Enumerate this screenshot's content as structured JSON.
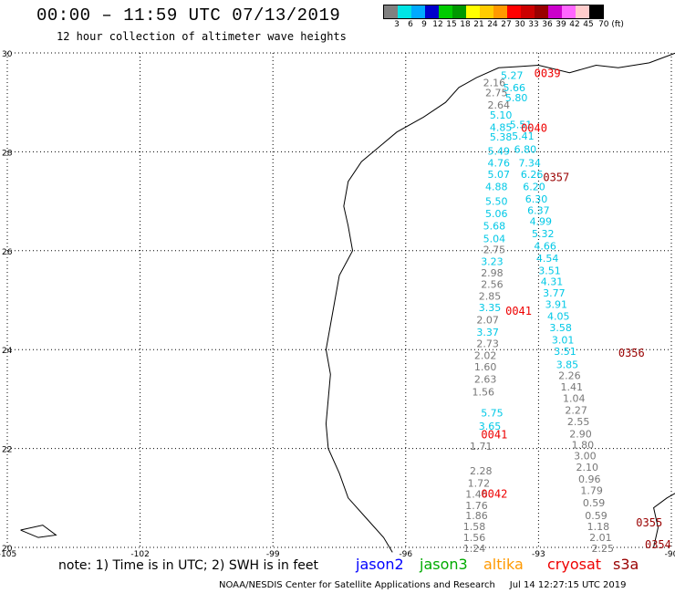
{
  "title": "00:00 – 11:59 UTC 07/13/2019",
  "subtitle": "12 hour collection of altimeter wave heights",
  "colorbar": {
    "colors": [
      "#808080",
      "#00e5e5",
      "#00aaff",
      "#0000cc",
      "#00cc00",
      "#009900",
      "#ffff00",
      "#ffcc00",
      "#ff9900",
      "#ff0000",
      "#cc0000",
      "#990000",
      "#cc00cc",
      "#ff66ff",
      "#ffcccc",
      "#000000"
    ],
    "labels": [
      "3",
      "6",
      "9",
      "12",
      "15",
      "18",
      "21",
      "24",
      "27",
      "30",
      "33",
      "36",
      "39",
      "42",
      "45",
      "70 (ft)"
    ]
  },
  "axes": {
    "lat_labels": [
      "30",
      "28",
      "26",
      "24",
      "22",
      "20"
    ],
    "lon_labels": [
      "-105",
      "-102",
      "-99",
      "-96",
      "-93",
      "-90"
    ]
  },
  "note": "note: 1) Time is in UTC; 2) SWH is in feet",
  "legend": [
    {
      "name": "jason2",
      "color": "#0000ff"
    },
    {
      "name": "jason3",
      "color": "#00aa00"
    },
    {
      "name": "altika",
      "color": "#ff9900"
    },
    {
      "name": "cryosat",
      "color": "#ee0000"
    },
    {
      "name": "s3a",
      "color": "#990000"
    }
  ],
  "credit": "NOAA/NESDIS Center for Satellite Applications and Research     Jul 14 12:27:15 UTC 2019",
  "colors": {
    "gray": "#777777",
    "cyan": "#00c8e6",
    "red": "#ee0000",
    "darkred": "#990000"
  },
  "time_labels": [
    {
      "text": "0039",
      "lon": -92.8,
      "lat": 29.6,
      "color": "red"
    },
    {
      "text": "0040",
      "lon": -93.1,
      "lat": 28.5,
      "color": "red"
    },
    {
      "text": "0357",
      "lon": -92.6,
      "lat": 27.5,
      "color": "darkred"
    },
    {
      "text": "0041",
      "lon": -93.45,
      "lat": 24.8,
      "color": "red"
    },
    {
      "text": "0356",
      "lon": -90.9,
      "lat": 23.95,
      "color": "darkred"
    },
    {
      "text": "0041",
      "lon": -94.0,
      "lat": 22.3,
      "color": "red"
    },
    {
      "text": "0042",
      "lon": -94.0,
      "lat": 21.1,
      "color": "red"
    },
    {
      "text": "0355",
      "lon": -90.5,
      "lat": 20.52,
      "color": "darkred"
    },
    {
      "text": "0354",
      "lon": -90.3,
      "lat": 20.07,
      "color": "darkred"
    }
  ],
  "wave_tracks": [
    {
      "name": "track-west",
      "points": [
        {
          "v": "2.16",
          "lon": -94.0,
          "lat": 29.4,
          "c": "gray"
        },
        {
          "v": "2.75",
          "lon": -93.95,
          "lat": 29.2,
          "c": "gray"
        },
        {
          "v": "2.64",
          "lon": -93.9,
          "lat": 28.95,
          "c": "gray"
        },
        {
          "v": "5.10",
          "lon": -93.85,
          "lat": 28.75,
          "c": "cyan"
        },
        {
          "v": "4.85",
          "lon": -93.85,
          "lat": 28.5,
          "c": "cyan"
        },
        {
          "v": "5.38",
          "lon": -93.85,
          "lat": 28.3,
          "c": "cyan"
        },
        {
          "v": "5.49",
          "lon": -93.9,
          "lat": 28.02,
          "c": "cyan"
        },
        {
          "v": "4.76",
          "lon": -93.9,
          "lat": 27.78,
          "c": "cyan"
        },
        {
          "v": "5.07",
          "lon": -93.9,
          "lat": 27.55,
          "c": "cyan"
        },
        {
          "v": "4.88",
          "lon": -93.95,
          "lat": 27.3,
          "c": "cyan"
        },
        {
          "v": "5.50",
          "lon": -93.95,
          "lat": 27.0,
          "c": "cyan"
        },
        {
          "v": "5.06",
          "lon": -93.95,
          "lat": 26.75,
          "c": "cyan"
        },
        {
          "v": "5.68",
          "lon": -94.0,
          "lat": 26.5,
          "c": "cyan"
        },
        {
          "v": "5.04",
          "lon": -94.0,
          "lat": 26.25,
          "c": "cyan"
        },
        {
          "v": "2.75",
          "lon": -94.0,
          "lat": 26.02,
          "c": "gray"
        },
        {
          "v": "3.23",
          "lon": -94.05,
          "lat": 25.78,
          "c": "cyan"
        },
        {
          "v": "2.98",
          "lon": -94.05,
          "lat": 25.55,
          "c": "gray"
        },
        {
          "v": "2.56",
          "lon": -94.05,
          "lat": 25.32,
          "c": "gray"
        },
        {
          "v": "2.85",
          "lon": -94.1,
          "lat": 25.08,
          "c": "gray"
        },
        {
          "v": "3.35",
          "lon": -94.1,
          "lat": 24.85,
          "c": "cyan"
        },
        {
          "v": "2.07",
          "lon": -94.15,
          "lat": 24.6,
          "c": "gray"
        },
        {
          "v": "3.37",
          "lon": -94.15,
          "lat": 24.35,
          "c": "cyan"
        },
        {
          "v": "2.73",
          "lon": -94.15,
          "lat": 24.12,
          "c": "gray"
        },
        {
          "v": "2.02",
          "lon": -94.2,
          "lat": 23.88,
          "c": "gray"
        },
        {
          "v": "1.60",
          "lon": -94.2,
          "lat": 23.65,
          "c": "gray"
        },
        {
          "v": "2.63",
          "lon": -94.2,
          "lat": 23.4,
          "c": "gray"
        },
        {
          "v": "1.56",
          "lon": -94.25,
          "lat": 23.15,
          "c": "gray"
        },
        {
          "v": "5.75",
          "lon": -94.05,
          "lat": 22.72,
          "c": "cyan"
        },
        {
          "v": "3.65",
          "lon": -94.1,
          "lat": 22.45,
          "c": "cyan"
        },
        {
          "v": "1.71",
          "lon": -94.3,
          "lat": 22.05,
          "c": "gray"
        },
        {
          "v": "2.28",
          "lon": -94.3,
          "lat": 21.55,
          "c": "gray"
        },
        {
          "v": "1.72",
          "lon": -94.35,
          "lat": 21.3,
          "c": "gray"
        },
        {
          "v": "1.46",
          "lon": -94.4,
          "lat": 21.08,
          "c": "gray"
        },
        {
          "v": "1.76",
          "lon": -94.4,
          "lat": 20.85,
          "c": "gray"
        },
        {
          "v": "1.86",
          "lon": -94.4,
          "lat": 20.65,
          "c": "gray"
        },
        {
          "v": "1.58",
          "lon": -94.45,
          "lat": 20.42,
          "c": "gray"
        },
        {
          "v": "1.56",
          "lon": -94.45,
          "lat": 20.2,
          "c": "gray"
        },
        {
          "v": "1.24",
          "lon": -94.45,
          "lat": 19.98,
          "c": "gray"
        }
      ]
    },
    {
      "name": "track-east",
      "points": [
        {
          "v": "5.27",
          "lon": -93.6,
          "lat": 29.55,
          "c": "cyan"
        },
        {
          "v": "5.66",
          "lon": -93.55,
          "lat": 29.3,
          "c": "cyan"
        },
        {
          "v": "5.80",
          "lon": -93.5,
          "lat": 29.1,
          "c": "cyan"
        },
        {
          "v": "5.51",
          "lon": -93.4,
          "lat": 28.55,
          "c": "cyan"
        },
        {
          "v": "5.41",
          "lon": -93.35,
          "lat": 28.32,
          "c": "cyan"
        },
        {
          "v": "6.80",
          "lon": -93.3,
          "lat": 28.05,
          "c": "cyan"
        },
        {
          "v": "7.34",
          "lon": -93.2,
          "lat": 27.78,
          "c": "cyan"
        },
        {
          "v": "6.26",
          "lon": -93.15,
          "lat": 27.55,
          "c": "cyan"
        },
        {
          "v": "6.20",
          "lon": -93.1,
          "lat": 27.3,
          "c": "cyan"
        },
        {
          "v": "6.30",
          "lon": -93.05,
          "lat": 27.05,
          "c": "cyan"
        },
        {
          "v": "6.37",
          "lon": -93.0,
          "lat": 26.82,
          "c": "cyan"
        },
        {
          "v": "4.99",
          "lon": -92.95,
          "lat": 26.6,
          "c": "cyan"
        },
        {
          "v": "5.32",
          "lon": -92.9,
          "lat": 26.35,
          "c": "cyan"
        },
        {
          "v": "4.66",
          "lon": -92.85,
          "lat": 26.1,
          "c": "cyan"
        },
        {
          "v": "4.54",
          "lon": -92.8,
          "lat": 25.85,
          "c": "cyan"
        },
        {
          "v": "3.51",
          "lon": -92.75,
          "lat": 25.6,
          "c": "cyan"
        },
        {
          "v": "4.31",
          "lon": -92.7,
          "lat": 25.38,
          "c": "cyan"
        },
        {
          "v": "3.77",
          "lon": -92.65,
          "lat": 25.15,
          "c": "cyan"
        },
        {
          "v": "3.91",
          "lon": -92.6,
          "lat": 24.92,
          "c": "cyan"
        },
        {
          "v": "4.05",
          "lon": -92.55,
          "lat": 24.68,
          "c": "cyan"
        },
        {
          "v": "3.58",
          "lon": -92.5,
          "lat": 24.45,
          "c": "cyan"
        },
        {
          "v": "3.01",
          "lon": -92.45,
          "lat": 24.2,
          "c": "cyan"
        },
        {
          "v": "3.51",
          "lon": -92.4,
          "lat": 23.97,
          "c": "cyan"
        },
        {
          "v": "3.85",
          "lon": -92.35,
          "lat": 23.7,
          "c": "cyan"
        },
        {
          "v": "2.26",
          "lon": -92.3,
          "lat": 23.48,
          "c": "gray"
        },
        {
          "v": "1.41",
          "lon": -92.25,
          "lat": 23.25,
          "c": "gray"
        },
        {
          "v": "1.04",
          "lon": -92.2,
          "lat": 23.02,
          "c": "gray"
        },
        {
          "v": "2.27",
          "lon": -92.15,
          "lat": 22.78,
          "c": "gray"
        },
        {
          "v": "2.55",
          "lon": -92.1,
          "lat": 22.55,
          "c": "gray"
        },
        {
          "v": "2.90",
          "lon": -92.05,
          "lat": 22.3,
          "c": "gray"
        },
        {
          "v": "1.80",
          "lon": -92.0,
          "lat": 22.08,
          "c": "gray"
        },
        {
          "v": "3.00",
          "lon": -91.95,
          "lat": 21.85,
          "c": "gray"
        },
        {
          "v": "2.10",
          "lon": -91.9,
          "lat": 21.62,
          "c": "gray"
        },
        {
          "v": "0.96",
          "lon": -91.85,
          "lat": 21.38,
          "c": "gray"
        },
        {
          "v": "1.79",
          "lon": -91.8,
          "lat": 21.15,
          "c": "gray"
        },
        {
          "v": "0.59",
          "lon": -91.75,
          "lat": 20.9,
          "c": "gray"
        },
        {
          "v": "0.59",
          "lon": -91.7,
          "lat": 20.65,
          "c": "gray"
        },
        {
          "v": "1.18",
          "lon": -91.65,
          "lat": 20.42,
          "c": "gray"
        },
        {
          "v": "2.01",
          "lon": -91.6,
          "lat": 20.2,
          "c": "gray"
        },
        {
          "v": "2.25",
          "lon": -91.55,
          "lat": 19.98,
          "c": "gray"
        }
      ]
    }
  ]
}
